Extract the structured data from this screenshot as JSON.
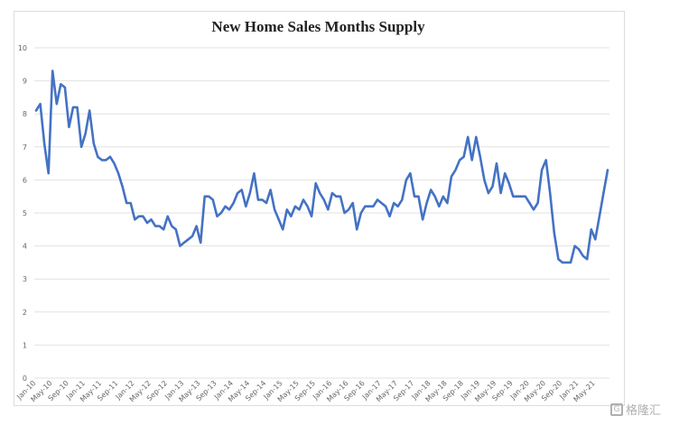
{
  "chart_data": {
    "type": "line",
    "title": "New Home Sales Months Supply",
    "xlabel": "",
    "ylabel": "",
    "ylim": [
      0,
      10
    ],
    "yticks": [
      0,
      1,
      2,
      3,
      4,
      5,
      6,
      7,
      8,
      9,
      10
    ],
    "grid": true,
    "x_tick_labels": [
      "Jan-10",
      "May-10",
      "Sep-10",
      "Jan-11",
      "May-11",
      "Sep-11",
      "Jan-12",
      "May-12",
      "Sep-12",
      "Jan-13",
      "May-13",
      "Sep-13",
      "Jan-14",
      "May-14",
      "Sep-14",
      "Jan-15",
      "May-15",
      "Sep-15",
      "Jan-16",
      "May-16",
      "Sep-16",
      "Jan-17",
      "May-17",
      "Sep-17",
      "Jan-18",
      "May-18",
      "Sep-18",
      "Jan-19",
      "May-19",
      "Sep-19",
      "Jan-20",
      "May-20",
      "Sep-20",
      "Jan-21",
      "May-21"
    ],
    "series": [
      {
        "color": "#4472C4",
        "values": [
          8.1,
          8.3,
          7.1,
          6.2,
          9.3,
          8.3,
          8.9,
          8.8,
          7.6,
          8.2,
          8.2,
          7.0,
          7.4,
          8.1,
          7.1,
          6.7,
          6.6,
          6.6,
          6.7,
          6.5,
          6.2,
          5.8,
          5.3,
          5.3,
          4.8,
          4.9,
          4.9,
          4.7,
          4.8,
          4.6,
          4.6,
          4.5,
          4.9,
          4.6,
          4.5,
          4.0,
          4.1,
          4.2,
          4.3,
          4.6,
          4.1,
          5.5,
          5.5,
          5.4,
          4.9,
          5.0,
          5.2,
          5.1,
          5.3,
          5.6,
          5.7,
          5.2,
          5.6,
          6.2,
          5.4,
          5.4,
          5.3,
          5.7,
          5.1,
          4.8,
          4.5,
          5.1,
          4.9,
          5.2,
          5.1,
          5.4,
          5.2,
          4.9,
          5.9,
          5.6,
          5.4,
          5.1,
          5.6,
          5.5,
          5.5,
          5.0,
          5.1,
          5.3,
          4.5,
          5.0,
          5.2,
          5.2,
          5.2,
          5.4,
          5.3,
          5.2,
          4.9,
          5.3,
          5.2,
          5.4,
          6.0,
          6.2,
          5.5,
          5.5,
          4.8,
          5.3,
          5.7,
          5.5,
          5.2,
          5.5,
          5.3,
          6.1,
          6.3,
          6.6,
          6.7,
          7.3,
          6.6,
          7.3,
          6.7,
          6.0,
          5.6,
          5.8,
          6.5,
          5.6,
          6.2,
          5.9,
          5.5,
          5.5,
          5.5,
          5.5,
          5.3,
          5.1,
          5.3,
          6.3,
          6.6,
          5.6,
          4.4,
          3.6,
          3.5,
          3.5,
          3.5,
          4.0,
          3.9,
          3.7,
          3.6,
          4.5,
          4.2,
          4.9,
          5.6,
          6.3
        ]
      }
    ]
  },
  "watermark": {
    "icon": "gelonghui-logo-icon",
    "text": "格隆汇"
  }
}
